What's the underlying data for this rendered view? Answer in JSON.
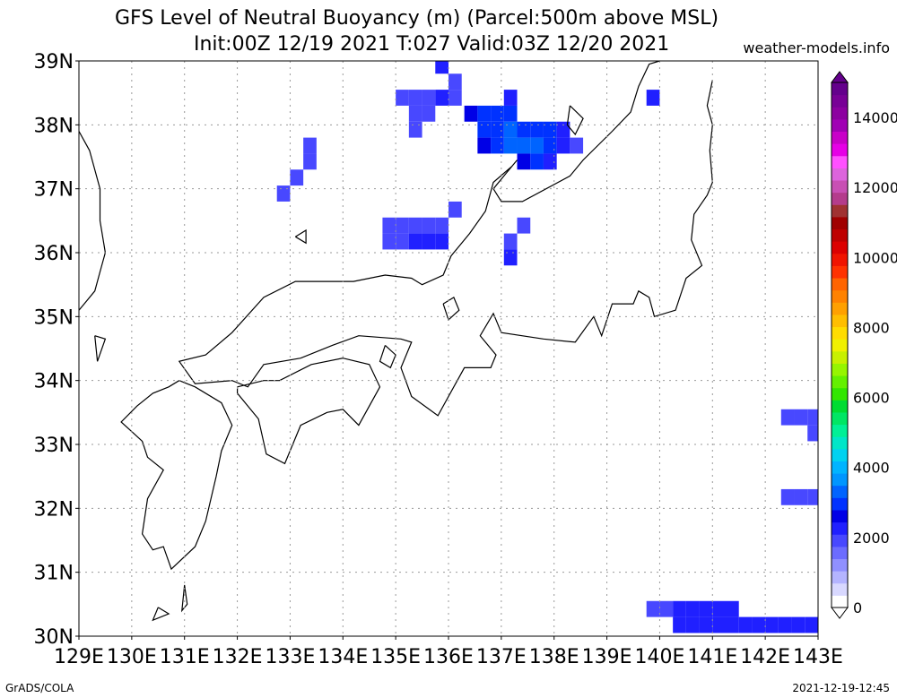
{
  "title": {
    "line1": "GFS Level of Neutral Buoyancy (m) (Parcel:500m above MSL)",
    "line2": "Init:00Z 12/19 2021 T:027 Valid:03Z 12/20 2021"
  },
  "site": "weather-models.info",
  "footer": {
    "left": "GrADS/COLA",
    "right": "2021-12-19-12:45"
  },
  "axes": {
    "lat_labels": [
      "39N",
      "38N",
      "37N",
      "36N",
      "35N",
      "34N",
      "33N",
      "32N",
      "31N",
      "30N"
    ],
    "lon_labels": [
      "129E",
      "130E",
      "131E",
      "132E",
      "133E",
      "134E",
      "135E",
      "136E",
      "137E",
      "138E",
      "139E",
      "140E",
      "141E",
      "142E",
      "143E"
    ]
  },
  "colorbar": {
    "labels": [
      "0",
      "2000",
      "4000",
      "6000",
      "8000",
      "10000",
      "12000",
      "14000"
    ],
    "colors": [
      "#ffffff",
      "#d8d8ff",
      "#b4b4ff",
      "#9090ff",
      "#6c6cff",
      "#4848ff",
      "#2020ff",
      "#0000e6",
      "#0032ff",
      "#0064ff",
      "#0096ff",
      "#00b4ff",
      "#00d2f0",
      "#00e6c8",
      "#00f096",
      "#00e664",
      "#00dc32",
      "#32e600",
      "#64f000",
      "#96f500",
      "#c8f000",
      "#f0f000",
      "#ffdc00",
      "#ffbe00",
      "#ffa000",
      "#ff8200",
      "#ff6400",
      "#ff3200",
      "#f01400",
      "#dc0000",
      "#be0000",
      "#a00000",
      "#a03232",
      "#b43c8c",
      "#c850b4",
      "#dc64dc",
      "#ff50ff",
      "#e600e6",
      "#c800c8",
      "#a000b4",
      "#8c00a0",
      "#780096",
      "#64008c"
    ]
  },
  "map": {
    "lon_min": 129,
    "lon_max": 143,
    "lat_min": 30,
    "lat_max": 39,
    "cells_lnb": [
      {
        "lon": 135.0,
        "lat": 38.3,
        "v": 1900
      },
      {
        "lon": 135.25,
        "lat": 38.3,
        "v": 1900
      },
      {
        "lon": 135.5,
        "lat": 38.3,
        "v": 1900
      },
      {
        "lon": 135.75,
        "lat": 38.3,
        "v": 2000
      },
      {
        "lon": 136.0,
        "lat": 38.3,
        "v": 1900
      },
      {
        "lon": 135.75,
        "lat": 38.8,
        "v": 2100
      },
      {
        "lon": 136.0,
        "lat": 38.55,
        "v": 1900
      },
      {
        "lon": 135.25,
        "lat": 38.05,
        "v": 1900
      },
      {
        "lon": 135.5,
        "lat": 38.05,
        "v": 1900
      },
      {
        "lon": 135.25,
        "lat": 37.8,
        "v": 1900
      },
      {
        "lon": 136.3,
        "lat": 38.05,
        "v": 2600
      },
      {
        "lon": 136.55,
        "lat": 38.05,
        "v": 2700
      },
      {
        "lon": 136.8,
        "lat": 38.05,
        "v": 2800
      },
      {
        "lon": 137.05,
        "lat": 38.05,
        "v": 2700
      },
      {
        "lon": 137.05,
        "lat": 38.3,
        "v": 2000
      },
      {
        "lon": 136.55,
        "lat": 37.8,
        "v": 2700
      },
      {
        "lon": 136.8,
        "lat": 37.8,
        "v": 3000
      },
      {
        "lon": 137.05,
        "lat": 37.8,
        "v": 3100
      },
      {
        "lon": 137.3,
        "lat": 37.8,
        "v": 3000
      },
      {
        "lon": 137.55,
        "lat": 37.8,
        "v": 2900
      },
      {
        "lon": 137.8,
        "lat": 37.8,
        "v": 2700
      },
      {
        "lon": 138.05,
        "lat": 37.8,
        "v": 2200
      },
      {
        "lon": 136.55,
        "lat": 37.55,
        "v": 2500
      },
      {
        "lon": 136.8,
        "lat": 37.55,
        "v": 2800
      },
      {
        "lon": 137.05,
        "lat": 37.55,
        "v": 3100
      },
      {
        "lon": 137.3,
        "lat": 37.55,
        "v": 3300
      },
      {
        "lon": 137.55,
        "lat": 37.55,
        "v": 3200
      },
      {
        "lon": 137.8,
        "lat": 37.55,
        "v": 2700
      },
      {
        "lon": 138.05,
        "lat": 37.55,
        "v": 2000
      },
      {
        "lon": 138.3,
        "lat": 37.55,
        "v": 1900
      },
      {
        "lon": 137.3,
        "lat": 37.3,
        "v": 2600
      },
      {
        "lon": 137.55,
        "lat": 37.3,
        "v": 2700
      },
      {
        "lon": 137.8,
        "lat": 37.3,
        "v": 2300
      },
      {
        "lon": 139.75,
        "lat": 38.3,
        "v": 2100
      },
      {
        "lon": 133.25,
        "lat": 37.55,
        "v": 1900
      },
      {
        "lon": 133.25,
        "lat": 37.3,
        "v": 1900
      },
      {
        "lon": 133.0,
        "lat": 37.05,
        "v": 1900
      },
      {
        "lon": 132.75,
        "lat": 36.8,
        "v": 1900
      },
      {
        "lon": 136.0,
        "lat": 36.55,
        "v": 1900
      },
      {
        "lon": 134.75,
        "lat": 36.3,
        "v": 1900
      },
      {
        "lon": 135.0,
        "lat": 36.3,
        "v": 1900
      },
      {
        "lon": 135.25,
        "lat": 36.3,
        "v": 1900
      },
      {
        "lon": 135.5,
        "lat": 36.3,
        "v": 1900
      },
      {
        "lon": 135.75,
        "lat": 36.3,
        "v": 1900
      },
      {
        "lon": 134.75,
        "lat": 36.05,
        "v": 1900
      },
      {
        "lon": 135.0,
        "lat": 36.05,
        "v": 1950
      },
      {
        "lon": 135.25,
        "lat": 36.05,
        "v": 2000
      },
      {
        "lon": 135.5,
        "lat": 36.05,
        "v": 2100
      },
      {
        "lon": 135.75,
        "lat": 36.05,
        "v": 2000
      },
      {
        "lon": 137.3,
        "lat": 36.3,
        "v": 1900
      },
      {
        "lon": 137.05,
        "lat": 36.05,
        "v": 1900
      },
      {
        "lon": 137.05,
        "lat": 35.8,
        "v": 2000
      },
      {
        "lon": 142.3,
        "lat": 33.3,
        "v": 1900
      },
      {
        "lon": 142.55,
        "lat": 33.3,
        "v": 1900
      },
      {
        "lon": 142.8,
        "lat": 33.3,
        "v": 1900
      },
      {
        "lon": 142.8,
        "lat": 33.05,
        "v": 1900
      },
      {
        "lon": 142.3,
        "lat": 32.05,
        "v": 1900
      },
      {
        "lon": 142.55,
        "lat": 32.05,
        "v": 1900
      },
      {
        "lon": 142.8,
        "lat": 32.05,
        "v": 1900
      },
      {
        "lon": 139.75,
        "lat": 30.3,
        "v": 1900
      },
      {
        "lon": 140.0,
        "lat": 30.3,
        "v": 1900
      },
      {
        "lon": 140.25,
        "lat": 30.3,
        "v": 2000
      },
      {
        "lon": 140.5,
        "lat": 30.3,
        "v": 2000
      },
      {
        "lon": 140.75,
        "lat": 30.3,
        "v": 2000
      },
      {
        "lon": 141.0,
        "lat": 30.3,
        "v": 2000
      },
      {
        "lon": 141.25,
        "lat": 30.3,
        "v": 2000
      },
      {
        "lon": 140.25,
        "lat": 30.05,
        "v": 2000
      },
      {
        "lon": 140.5,
        "lat": 30.05,
        "v": 2000
      },
      {
        "lon": 140.75,
        "lat": 30.05,
        "v": 2000
      },
      {
        "lon": 141.0,
        "lat": 30.05,
        "v": 2000
      },
      {
        "lon": 141.25,
        "lat": 30.05,
        "v": 2000
      },
      {
        "lon": 141.5,
        "lat": 30.05,
        "v": 2000
      },
      {
        "lon": 141.75,
        "lat": 30.05,
        "v": 2000
      },
      {
        "lon": 142.0,
        "lat": 30.05,
        "v": 2000
      },
      {
        "lon": 142.25,
        "lat": 30.05,
        "v": 2000
      },
      {
        "lon": 142.5,
        "lat": 30.05,
        "v": 2000
      },
      {
        "lon": 142.75,
        "lat": 30.05,
        "v": 2000
      }
    ],
    "coastlines": [
      [
        [
          129.0,
          37.9
        ],
        [
          129.2,
          37.6
        ],
        [
          129.4,
          37.0
        ],
        [
          129.4,
          36.5
        ],
        [
          129.5,
          36.0
        ],
        [
          129.4,
          35.7
        ],
        [
          129.3,
          35.4
        ],
        [
          129.1,
          35.2
        ],
        [
          129.0,
          35.1
        ]
      ],
      [
        [
          141.0,
          38.7
        ],
        [
          140.9,
          38.3
        ],
        [
          141.0,
          38.0
        ],
        [
          140.95,
          37.6
        ],
        [
          141.0,
          37.1
        ],
        [
          140.9,
          36.9
        ],
        [
          140.65,
          36.6
        ],
        [
          140.6,
          36.2
        ],
        [
          140.8,
          35.8
        ],
        [
          140.5,
          35.6
        ],
        [
          140.3,
          35.1
        ],
        [
          139.9,
          35.0
        ],
        [
          139.8,
          35.3
        ],
        [
          139.6,
          35.4
        ],
        [
          139.5,
          35.2
        ],
        [
          139.1,
          35.2
        ],
        [
          138.9,
          34.7
        ],
        [
          138.75,
          35.0
        ],
        [
          138.4,
          34.6
        ],
        [
          137.8,
          34.65
        ],
        [
          137.0,
          34.75
        ],
        [
          136.85,
          35.05
        ],
        [
          136.6,
          34.7
        ],
        [
          136.9,
          34.4
        ],
        [
          136.8,
          34.2
        ],
        [
          136.3,
          34.2
        ],
        [
          135.8,
          33.45
        ],
        [
          135.3,
          33.75
        ],
        [
          135.1,
          34.2
        ],
        [
          135.3,
          34.6
        ],
        [
          135.1,
          34.65
        ],
        [
          134.3,
          34.7
        ],
        [
          133.8,
          34.55
        ],
        [
          133.2,
          34.35
        ],
        [
          132.5,
          34.25
        ],
        [
          132.2,
          33.9
        ],
        [
          131.9,
          34.0
        ],
        [
          131.2,
          33.95
        ],
        [
          130.9,
          34.3
        ],
        [
          131.4,
          34.4
        ],
        [
          131.9,
          34.75
        ],
        [
          132.5,
          35.3
        ],
        [
          133.1,
          35.55
        ],
        [
          134.2,
          35.55
        ],
        [
          134.8,
          35.65
        ],
        [
          135.3,
          35.6
        ],
        [
          135.5,
          35.5
        ],
        [
          135.9,
          35.65
        ],
        [
          136.05,
          35.95
        ],
        [
          136.4,
          36.3
        ],
        [
          136.7,
          36.65
        ],
        [
          136.85,
          37.1
        ],
        [
          137.2,
          37.35
        ],
        [
          137.3,
          37.45
        ],
        [
          137.05,
          37.2
        ],
        [
          136.85,
          37.0
        ],
        [
          137.0,
          36.8
        ],
        [
          137.4,
          36.8
        ],
        [
          138.3,
          37.2
        ],
        [
          138.55,
          37.45
        ],
        [
          139.1,
          37.9
        ],
        [
          139.45,
          38.2
        ],
        [
          139.6,
          38.6
        ],
        [
          139.8,
          38.95
        ],
        [
          140.0,
          39.0
        ]
      ],
      [
        [
          130.9,
          34.0
        ],
        [
          131.2,
          33.9
        ],
        [
          131.7,
          33.65
        ],
        [
          131.9,
          33.3
        ],
        [
          131.7,
          32.9
        ],
        [
          131.6,
          32.5
        ],
        [
          131.4,
          31.8
        ],
        [
          131.2,
          31.4
        ],
        [
          130.75,
          31.05
        ],
        [
          130.6,
          31.4
        ],
        [
          130.4,
          31.35
        ],
        [
          130.2,
          31.6
        ],
        [
          130.3,
          32.15
        ],
        [
          130.6,
          32.6
        ],
        [
          130.3,
          32.8
        ],
        [
          130.2,
          33.05
        ],
        [
          130.0,
          33.2
        ],
        [
          129.8,
          33.35
        ],
        [
          130.1,
          33.6
        ],
        [
          130.4,
          33.8
        ],
        [
          130.7,
          33.9
        ],
        [
          130.9,
          34.0
        ]
      ],
      [
        [
          132.0,
          33.9
        ],
        [
          132.5,
          34.0
        ],
        [
          132.8,
          34.0
        ],
        [
          133.4,
          34.25
        ],
        [
          134.0,
          34.35
        ],
        [
          134.5,
          34.25
        ],
        [
          134.7,
          33.9
        ],
        [
          134.3,
          33.3
        ],
        [
          134.0,
          33.55
        ],
        [
          133.7,
          33.5
        ],
        [
          133.2,
          33.3
        ],
        [
          132.9,
          32.7
        ],
        [
          132.55,
          32.85
        ],
        [
          132.4,
          33.4
        ],
        [
          132.0,
          33.8
        ],
        [
          132.0,
          33.9
        ]
      ],
      [
        [
          135.9,
          35.2
        ],
        [
          136.1,
          35.3
        ],
        [
          136.2,
          35.1
        ],
        [
          136.0,
          34.95
        ],
        [
          135.9,
          35.2
        ]
      ],
      [
        [
          138.3,
          38.3
        ],
        [
          138.55,
          38.1
        ],
        [
          138.4,
          37.85
        ],
        [
          138.25,
          38.0
        ],
        [
          138.3,
          38.3
        ]
      ],
      [
        [
          134.8,
          34.55
        ],
        [
          135.0,
          34.4
        ],
        [
          134.9,
          34.2
        ],
        [
          134.7,
          34.3
        ],
        [
          134.8,
          34.55
        ]
      ],
      [
        [
          133.1,
          36.25
        ],
        [
          133.3,
          36.35
        ],
        [
          133.3,
          36.15
        ],
        [
          133.1,
          36.25
        ]
      ],
      [
        [
          129.3,
          34.7
        ],
        [
          129.5,
          34.65
        ],
        [
          129.35,
          34.3
        ],
        [
          129.3,
          34.7
        ]
      ],
      [
        [
          130.5,
          30.45
        ],
        [
          130.7,
          30.35
        ],
        [
          130.4,
          30.25
        ],
        [
          130.5,
          30.45
        ]
      ],
      [
        [
          131.0,
          30.8
        ],
        [
          131.05,
          30.5
        ],
        [
          130.95,
          30.4
        ],
        [
          131.0,
          30.8
        ]
      ]
    ]
  }
}
